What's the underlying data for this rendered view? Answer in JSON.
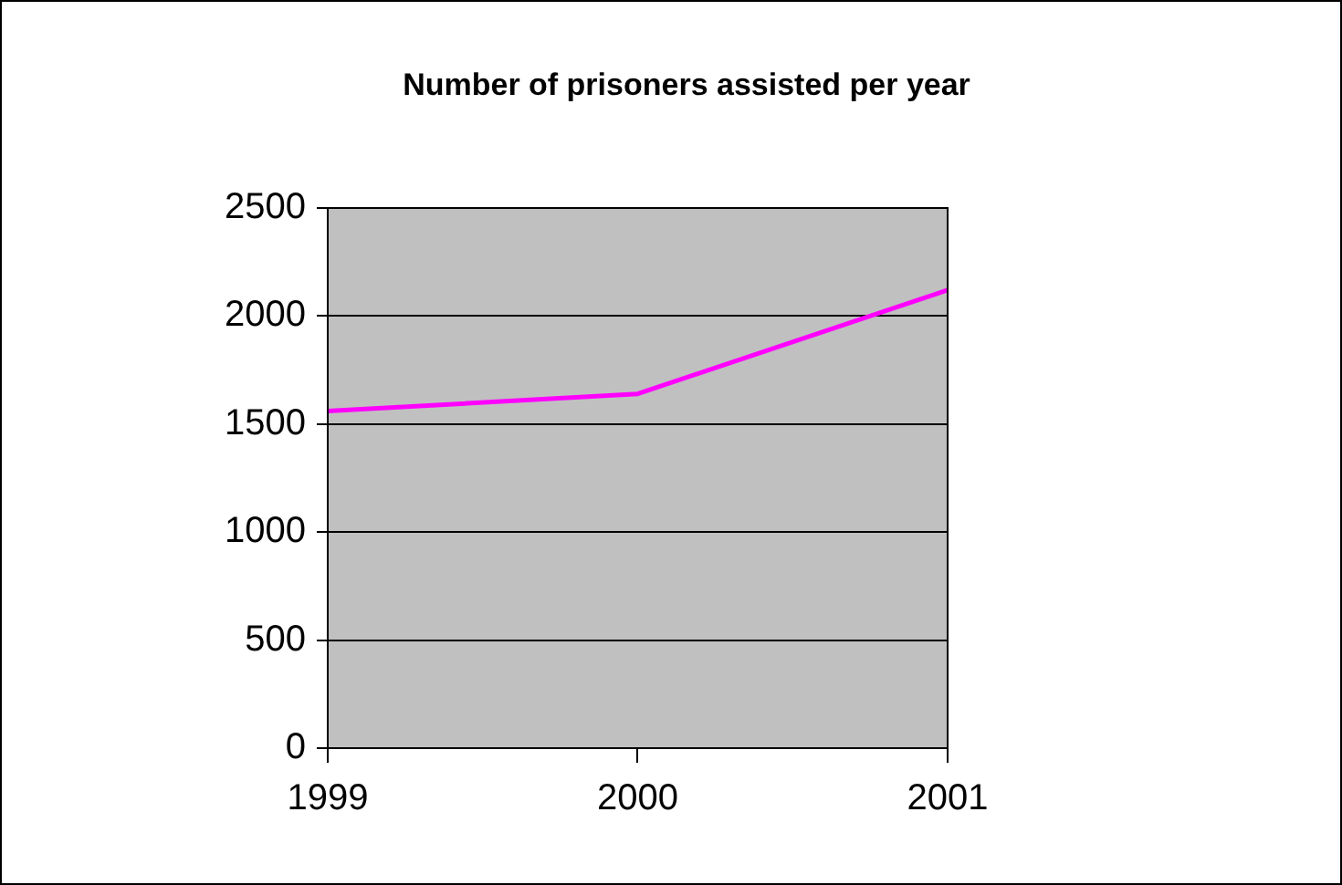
{
  "chart_data": {
    "type": "line",
    "title": "Number of prisoners assisted per year",
    "categories": [
      "1999",
      "2000",
      "2001"
    ],
    "series": [
      {
        "color": "#ff00ff",
        "values": [
          1560,
          1640,
          2120
        ]
      }
    ],
    "ylim": [
      0,
      2500
    ],
    "yticks": [
      0,
      500,
      1000,
      1500,
      2000,
      2500
    ],
    "grid": "y",
    "legend": false,
    "marker": "none",
    "line_style": "solid"
  }
}
